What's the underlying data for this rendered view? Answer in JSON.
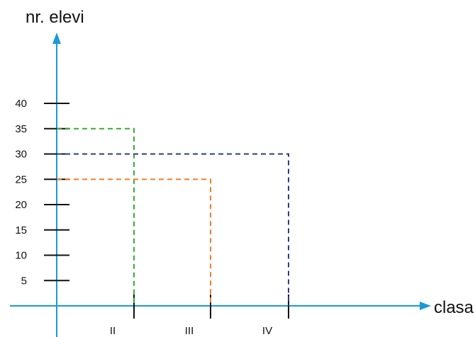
{
  "chart_data": {
    "type": "line",
    "ylabel": "nr. elevi",
    "xlabel": "clasa",
    "categories": [
      "II",
      "III",
      "IV"
    ],
    "y_ticks": [
      5,
      10,
      15,
      20,
      25,
      30,
      35,
      40
    ],
    "ylim": [
      0,
      40
    ],
    "series": [
      {
        "category": "II",
        "value": 35,
        "color": "#3aaa35"
      },
      {
        "category": "III",
        "value": 25,
        "color": "#f07f2c"
      },
      {
        "category": "IV",
        "value": 30,
        "color": "#2e3a87"
      }
    ],
    "axis_color": "#1a9ad6",
    "tick_color": "#111111",
    "grid": false
  }
}
